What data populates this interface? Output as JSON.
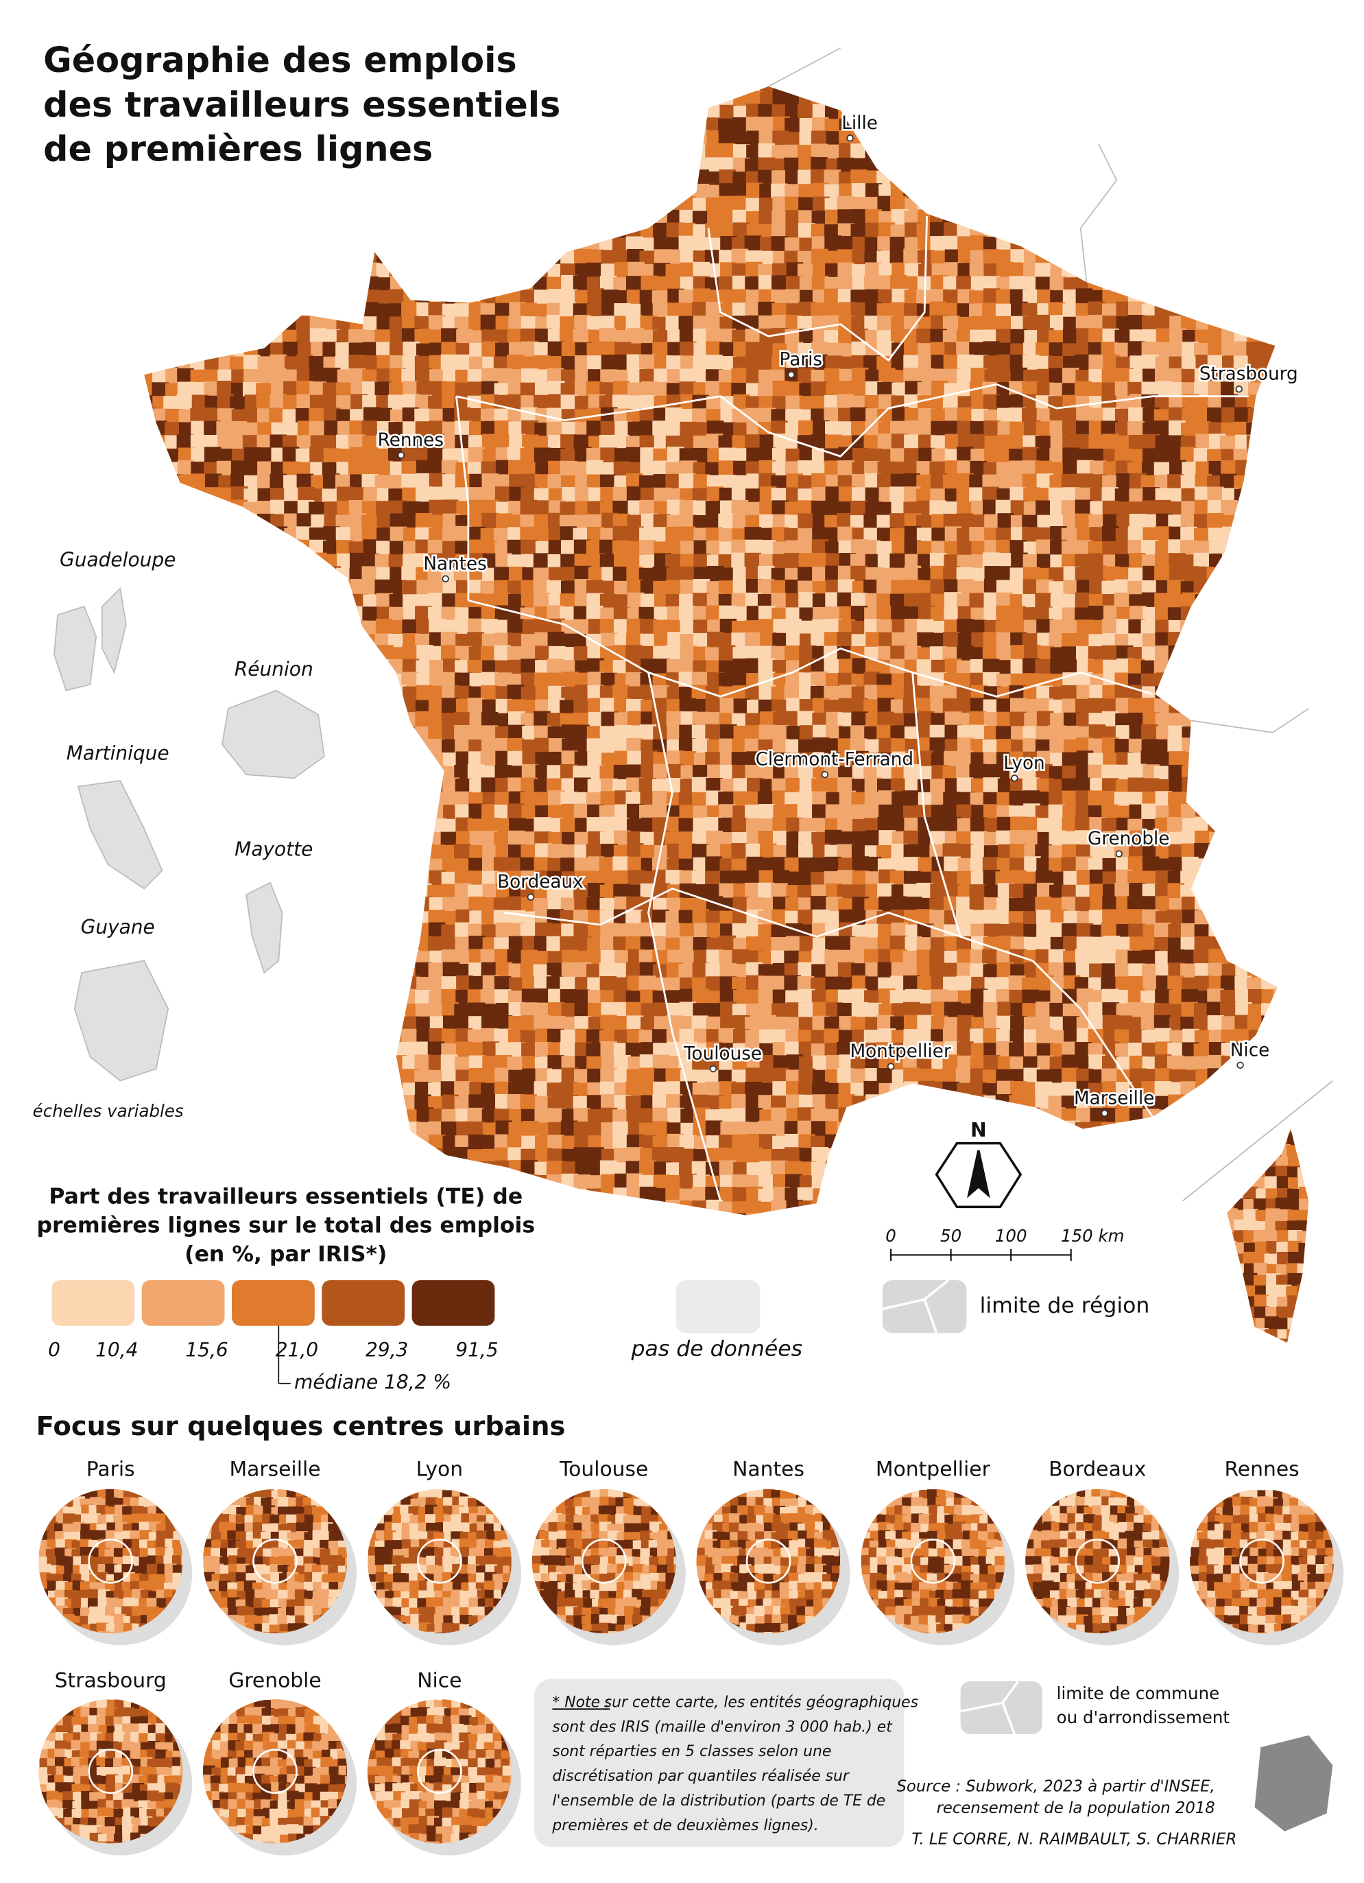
{
  "title": [
    "Géographie des emplois",
    "des travailleurs essentiels",
    "de premières lignes"
  ],
  "cities": [
    "Lille",
    "Paris",
    "Strasbourg",
    "Rennes",
    "Nantes",
    "Clermont-Ferrand",
    "Lyon",
    "Grenoble",
    "Bordeaux",
    "Toulouse",
    "Montpellier",
    "Nice",
    "Marseille"
  ],
  "overseas": [
    "Guadeloupe",
    "Réunion",
    "Martinique",
    "Mayotte",
    "Guyane"
  ],
  "scale_note": "échelles variables",
  "legend": {
    "title": [
      "Part des travailleurs essentiels (TE) de",
      "premières lignes sur le total des emplois",
      "(en %, par IRIS*)"
    ],
    "colors": [
      "#fcd6b1",
      "#f0a66c",
      "#e07a2c",
      "#b4561b",
      "#6a2a0d"
    ],
    "breaks": [
      "0",
      "10,4",
      "15,6",
      "21,0",
      "29,3",
      "91,5"
    ],
    "median": "médiane 18,2 %",
    "no_data": "pas de données",
    "region_limit": "limite de région"
  },
  "north": "N",
  "scale_ticks": [
    "0",
    "50",
    "100",
    "150 km"
  ],
  "focus": {
    "title": "Focus sur quelques centres urbains",
    "cities": [
      "Paris",
      "Marseille",
      "Lyon",
      "Toulouse",
      "Nantes",
      "Montpellier",
      "Bordeaux",
      "Rennes",
      "Strasbourg",
      "Grenoble",
      "Nice"
    ]
  },
  "commune_limit": [
    "limite de commune",
    "ou d'arrondissement"
  ],
  "note": {
    "lead": "* Note :",
    "lines": [
      " sur cette carte, les entités géographiques",
      "sont des IRIS (maille d'environ 3 000 hab.) et",
      "sont réparties en 5 classes selon une",
      "discrétisation par quantiles réalisée sur",
      "l'ensemble de la distribution (parts de TE de",
      "premières et de deuxièmes lignes)."
    ]
  },
  "source": [
    "Source : Subwork, 2023 à partir d'INSEE,",
    "recensement de la population 2018"
  ],
  "authors": "T. LE CORRE, N. RAIMBAULT, S. CHARRIER"
}
